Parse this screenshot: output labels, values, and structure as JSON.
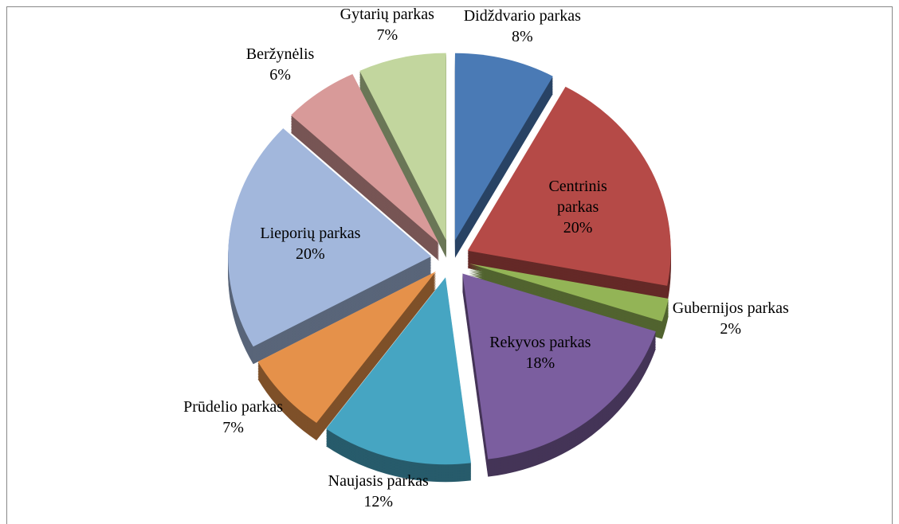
{
  "chart_data": {
    "type": "pie",
    "categories": [
      "Didždvario parkas",
      "Centrinis parkas",
      "Gubernijos parkas",
      "Rekyvos parkas",
      "Naujasis parkas",
      "Prūdelio parkas",
      "Lieporių parkas",
      "Beržynėlis",
      "Gytarių parkas"
    ],
    "values": [
      8,
      20,
      2,
      18,
      12,
      7,
      20,
      6,
      7
    ],
    "value_labels": [
      "8%",
      "20%",
      "2%",
      "18%",
      "12%",
      "7%",
      "20%",
      "6%",
      "7%"
    ],
    "colors": [
      "#4a7ab5",
      "#b54a47",
      "#93b456",
      "#7b5e9f",
      "#46a5c2",
      "#e5914a",
      "#a2b7dc",
      "#d89a99",
      "#c2d69e"
    ]
  }
}
